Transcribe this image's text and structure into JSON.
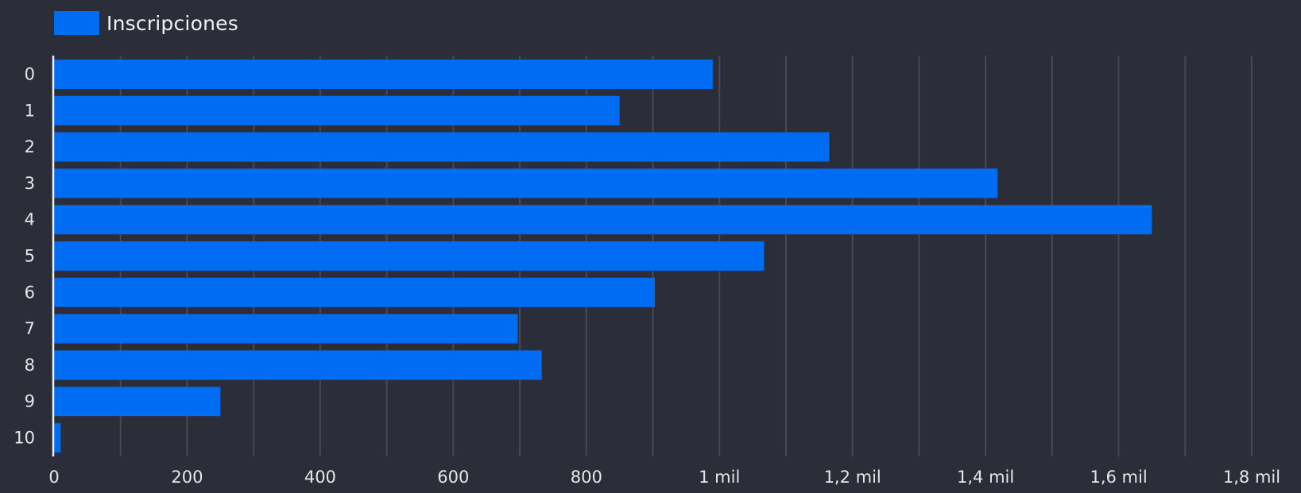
{
  "chart_data": {
    "type": "bar",
    "orientation": "horizontal",
    "categories": [
      "0",
      "1",
      "2",
      "3",
      "4",
      "5",
      "6",
      "7",
      "8",
      "9",
      "10"
    ],
    "series": [
      {
        "name": "Inscripciones",
        "color": "#006cf2",
        "values": [
          990,
          850,
          1165,
          1418,
          1650,
          1067,
          903,
          697,
          733,
          250,
          10
        ]
      }
    ],
    "xlim": [
      0,
      1800
    ],
    "x_ticks": [
      0,
      200,
      400,
      600,
      800,
      1000,
      1200,
      1400,
      1600,
      1800
    ],
    "x_tick_labels": [
      "0",
      "200",
      "400",
      "600",
      "800",
      "1 mil",
      "1,2 mil",
      "1,4 mil",
      "1,6 mil",
      "1,8 mil"
    ],
    "grid": "vertical",
    "legend_position": "top-left",
    "background": "#2b2d38",
    "grid_color": "#454856"
  }
}
